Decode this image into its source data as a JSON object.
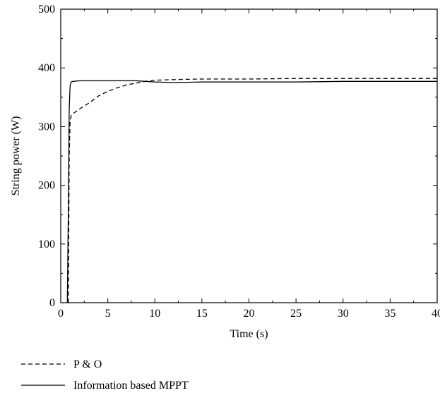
{
  "chart_data": {
    "type": "line",
    "title": "",
    "xlabel": "Time (s)",
    "ylabel": "String power (W)",
    "xlim": [
      0,
      40
    ],
    "ylim": [
      0,
      500
    ],
    "xticks": [
      0,
      5,
      10,
      15,
      20,
      25,
      30,
      35,
      40
    ],
    "yticks": [
      0,
      100,
      200,
      300,
      400,
      500
    ],
    "grid": false,
    "legend_position": "bottom-left, below plot",
    "series": [
      {
        "name": "P & O",
        "style": "dashed",
        "color": "#000000",
        "x": [
          0.8,
          0.9,
          1.0,
          1.1,
          1.3,
          2,
          3,
          4,
          5,
          6,
          7,
          8,
          9,
          10,
          12,
          15,
          20,
          25,
          30,
          35,
          40
        ],
        "y": [
          0,
          250,
          310,
          318,
          322,
          330,
          340,
          352,
          360,
          366,
          371,
          374,
          377,
          379,
          380,
          381,
          381,
          382,
          382,
          382,
          382
        ]
      },
      {
        "name": "Information based MPPT",
        "style": "solid",
        "color": "#000000",
        "x": [
          0.7,
          0.8,
          0.9,
          1.0,
          1.1,
          1.3,
          2,
          3,
          5,
          8,
          9,
          10,
          12,
          15,
          20,
          25,
          30,
          35,
          40
        ],
        "y": [
          0,
          150,
          330,
          370,
          376,
          377,
          378,
          378,
          378,
          378,
          377,
          376,
          375,
          376,
          376,
          376,
          377,
          377,
          377
        ]
      }
    ]
  }
}
